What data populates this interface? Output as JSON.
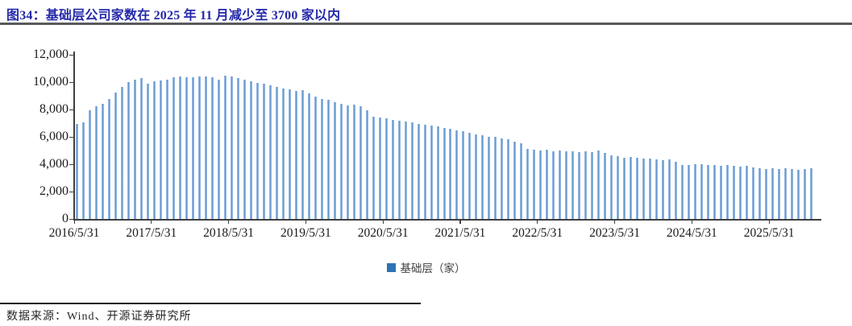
{
  "header": {
    "title": "图34：基础层公司家数在 2025 年 11 月减少至 3700 家以内"
  },
  "chart_data": {
    "type": "bar",
    "title": "基础层公司家数",
    "legend": {
      "label": "基础层（家）",
      "swatch_color": "#2e74b5",
      "position": "bottom-center"
    },
    "bar_color": "#6f9fd3",
    "grid": false,
    "ylim": [
      0,
      12000
    ],
    "yticks": [
      0,
      2000,
      4000,
      6000,
      8000,
      10000,
      12000
    ],
    "ytick_labels": [
      "0",
      "2,000",
      "4,000",
      "6,000",
      "8,000",
      "10,000",
      "12,000"
    ],
    "xtick_labels": [
      "2016/5/31",
      "2017/5/31",
      "2018/5/31",
      "2019/5/31",
      "2020/5/31",
      "2021/5/31",
      "2022/5/31",
      "2023/5/31",
      "2024/5/31",
      "2025/5/31"
    ],
    "x": [
      "2016/5/31",
      "2016/6/30",
      "2016/7/31",
      "2016/8/31",
      "2016/9/30",
      "2016/10/31",
      "2016/11/30",
      "2016/12/31",
      "2017/1/31",
      "2017/2/28",
      "2017/3/31",
      "2017/4/30",
      "2017/5/31",
      "2017/6/30",
      "2017/7/31",
      "2017/8/31",
      "2017/9/30",
      "2017/10/31",
      "2017/11/30",
      "2017/12/31",
      "2018/1/31",
      "2018/2/28",
      "2018/3/31",
      "2018/4/30",
      "2018/5/31",
      "2018/6/30",
      "2018/7/31",
      "2018/8/31",
      "2018/9/30",
      "2018/10/31",
      "2018/11/30",
      "2018/12/31",
      "2019/1/31",
      "2019/2/28",
      "2019/3/31",
      "2019/4/30",
      "2019/5/31",
      "2019/6/30",
      "2019/7/31",
      "2019/8/31",
      "2019/9/30",
      "2019/10/31",
      "2019/11/30",
      "2019/12/31",
      "2020/1/31",
      "2020/2/29",
      "2020/3/31",
      "2020/4/30",
      "2020/5/31",
      "2020/6/30",
      "2020/7/31",
      "2020/8/31",
      "2020/9/30",
      "2020/10/31",
      "2020/11/30",
      "2020/12/31",
      "2021/1/31",
      "2021/2/28",
      "2021/3/31",
      "2021/4/30",
      "2021/5/31",
      "2021/6/30",
      "2021/7/31",
      "2021/8/31",
      "2021/9/30",
      "2021/10/31",
      "2021/11/30",
      "2021/12/31",
      "2022/1/31",
      "2022/2/28",
      "2022/3/31",
      "2022/4/30",
      "2022/5/31",
      "2022/6/30",
      "2022/7/31",
      "2022/8/31",
      "2022/9/30",
      "2022/10/31",
      "2022/11/30",
      "2022/12/31",
      "2023/1/31",
      "2023/2/28",
      "2023/3/31",
      "2023/4/30",
      "2023/5/31",
      "2023/6/30",
      "2023/7/31",
      "2023/8/31",
      "2023/9/30",
      "2023/10/31",
      "2023/11/30",
      "2023/12/31",
      "2024/1/31",
      "2024/2/29",
      "2024/3/31",
      "2024/4/30",
      "2024/5/31",
      "2024/6/30",
      "2024/7/31",
      "2024/8/31",
      "2024/9/30",
      "2024/10/31",
      "2024/11/30",
      "2024/12/31",
      "2025/1/31",
      "2025/2/28",
      "2025/3/31",
      "2025/4/30",
      "2025/5/31",
      "2025/6/30",
      "2025/7/31",
      "2025/8/31",
      "2025/9/30",
      "2025/10/31",
      "2025/11/30"
    ],
    "values": [
      6940,
      7030,
      7960,
      8240,
      8430,
      8780,
      9230,
      9660,
      10020,
      10190,
      10310,
      9900,
      10060,
      10100,
      10190,
      10350,
      10390,
      10370,
      10370,
      10410,
      10390,
      10370,
      10160,
      10450,
      10390,
      10280,
      10170,
      10070,
      9960,
      9890,
      9780,
      9630,
      9530,
      9490,
      9330,
      9430,
      9180,
      8940,
      8750,
      8690,
      8550,
      8420,
      8300,
      8330,
      8210,
      7920,
      7470,
      7400,
      7330,
      7250,
      7180,
      7110,
      7030,
      6960,
      6880,
      6800,
      6760,
      6620,
      6560,
      6500,
      6430,
      6300,
      6200,
      6130,
      6020,
      5990,
      5900,
      5810,
      5650,
      5530,
      5120,
      5040,
      4980,
      5080,
      4940,
      4980,
      4970,
      4920,
      4880,
      4920,
      4880,
      4980,
      4840,
      4650,
      4590,
      4490,
      4530,
      4450,
      4390,
      4390,
      4350,
      4300,
      4330,
      4150,
      3940,
      3960,
      3980,
      4000,
      3960,
      3940,
      3880,
      3920,
      3880,
      3840,
      3880,
      3750,
      3690,
      3650,
      3690,
      3650,
      3690,
      3650,
      3610,
      3650,
      3690
    ]
  },
  "footer": {
    "source": "数据来源：Wind、开源证券研究所"
  }
}
